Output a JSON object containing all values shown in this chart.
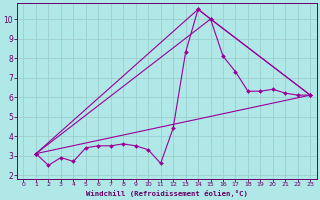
{
  "bg_color": "#b0e8e8",
  "grid_color": "#9ecece",
  "line_color": "#990099",
  "marker_color": "#990099",
  "xlabel": "Windchill (Refroidissement éolien,°C)",
  "xlabel_color": "#660066",
  "tick_color": "#660066",
  "xlim": [
    -0.5,
    23.5
  ],
  "ylim": [
    1.8,
    10.8
  ],
  "xticks": [
    0,
    1,
    2,
    3,
    4,
    5,
    6,
    7,
    8,
    9,
    10,
    11,
    12,
    13,
    14,
    15,
    16,
    17,
    18,
    19,
    20,
    21,
    22,
    23
  ],
  "yticks": [
    2,
    3,
    4,
    5,
    6,
    7,
    8,
    9,
    10
  ],
  "series_main": [
    [
      1,
      3.1
    ],
    [
      2,
      2.5
    ],
    [
      3,
      2.9
    ],
    [
      4,
      2.7
    ],
    [
      5,
      3.4
    ],
    [
      6,
      3.5
    ],
    [
      7,
      3.5
    ],
    [
      8,
      3.6
    ],
    [
      9,
      3.5
    ],
    [
      10,
      3.3
    ],
    [
      11,
      2.6
    ],
    [
      12,
      4.4
    ],
    [
      13,
      8.3
    ],
    [
      14,
      10.5
    ],
    [
      15,
      10.0
    ],
    [
      16,
      8.1
    ],
    [
      17,
      7.3
    ],
    [
      18,
      6.3
    ],
    [
      19,
      6.3
    ],
    [
      20,
      6.4
    ],
    [
      21,
      6.2
    ],
    [
      22,
      6.1
    ],
    [
      23,
      6.1
    ]
  ],
  "line_straight": [
    [
      1,
      3.1
    ],
    [
      23,
      6.1
    ]
  ],
  "line_thru_15": [
    [
      1,
      3.1
    ],
    [
      15,
      10.0
    ],
    [
      23,
      6.1
    ]
  ],
  "line_thru_14": [
    [
      1,
      3.1
    ],
    [
      14,
      10.5
    ],
    [
      23,
      6.1
    ]
  ]
}
